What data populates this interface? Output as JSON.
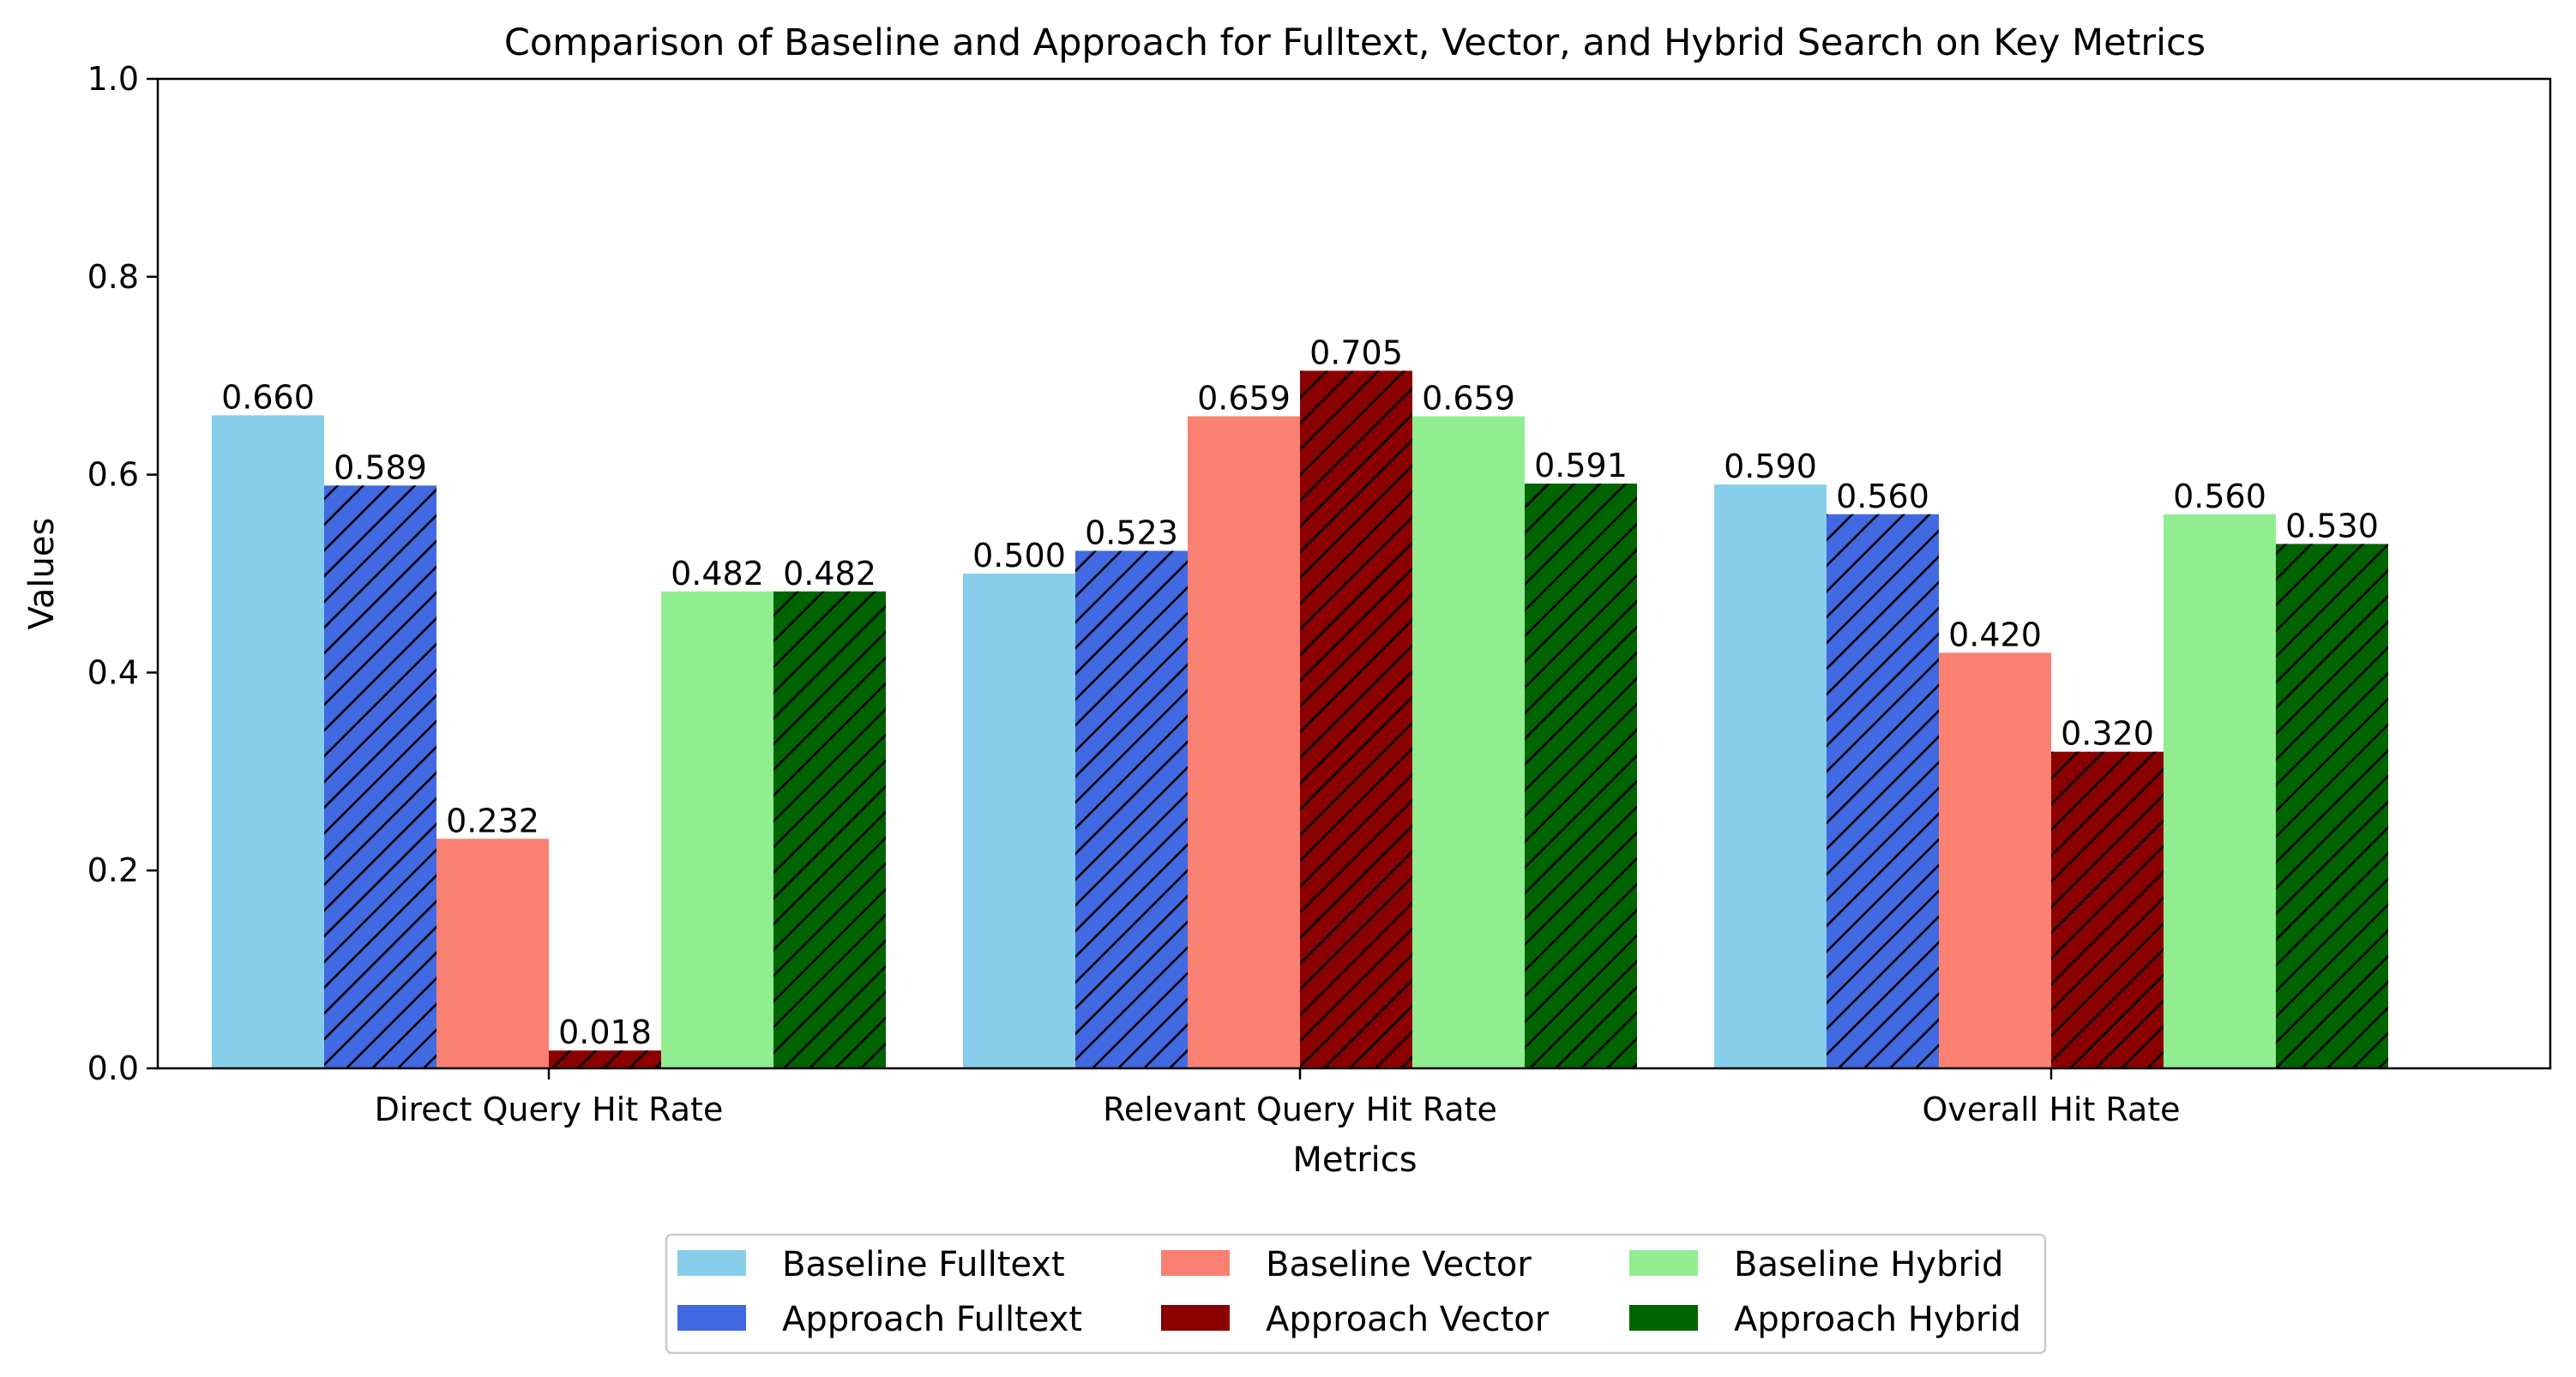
{
  "chart_data": {
    "type": "bar",
    "title": "Comparison of Baseline and Approach for Fulltext, Vector, and Hybrid Search on Key Metrics",
    "xlabel": "Metrics",
    "ylabel": "Values",
    "ylim": [
      0,
      1.0
    ],
    "yticks": [
      "0.0",
      "0.2",
      "0.4",
      "0.6",
      "0.8",
      "1.0"
    ],
    "grid": false,
    "legend_position": "bottom-center",
    "legend_columns": 3,
    "categories": [
      "Direct Query Hit Rate",
      "Relevant Query Hit Rate",
      "Overall Hit Rate"
    ],
    "series": [
      {
        "name": "Baseline Fulltext",
        "color": "#87ceeb",
        "hatch": false,
        "values": [
          0.66,
          0.5,
          0.59
        ],
        "labels": [
          "0.660",
          "0.500",
          "0.590"
        ]
      },
      {
        "name": "Approach Fulltext",
        "color": "#4169e1",
        "hatch": true,
        "values": [
          0.589,
          0.523,
          0.56
        ],
        "labels": [
          "0.589",
          "0.523",
          "0.560"
        ]
      },
      {
        "name": "Baseline Vector",
        "color": "#fa8072",
        "hatch": false,
        "values": [
          0.232,
          0.659,
          0.42
        ],
        "labels": [
          "0.232",
          "0.659",
          "0.420"
        ]
      },
      {
        "name": "Approach Vector",
        "color": "#8b0000",
        "hatch": true,
        "values": [
          0.018,
          0.705,
          0.32
        ],
        "labels": [
          "0.018",
          "0.705",
          "0.320"
        ]
      },
      {
        "name": "Baseline Hybrid",
        "color": "#90ee90",
        "hatch": false,
        "values": [
          0.482,
          0.659,
          0.56
        ],
        "labels": [
          "0.482",
          "0.659",
          "0.560"
        ]
      },
      {
        "name": "Approach Hybrid",
        "color": "#006400",
        "hatch": true,
        "values": [
          0.482,
          0.591,
          0.53
        ],
        "labels": [
          "0.482",
          "0.591",
          "0.530"
        ]
      }
    ]
  }
}
